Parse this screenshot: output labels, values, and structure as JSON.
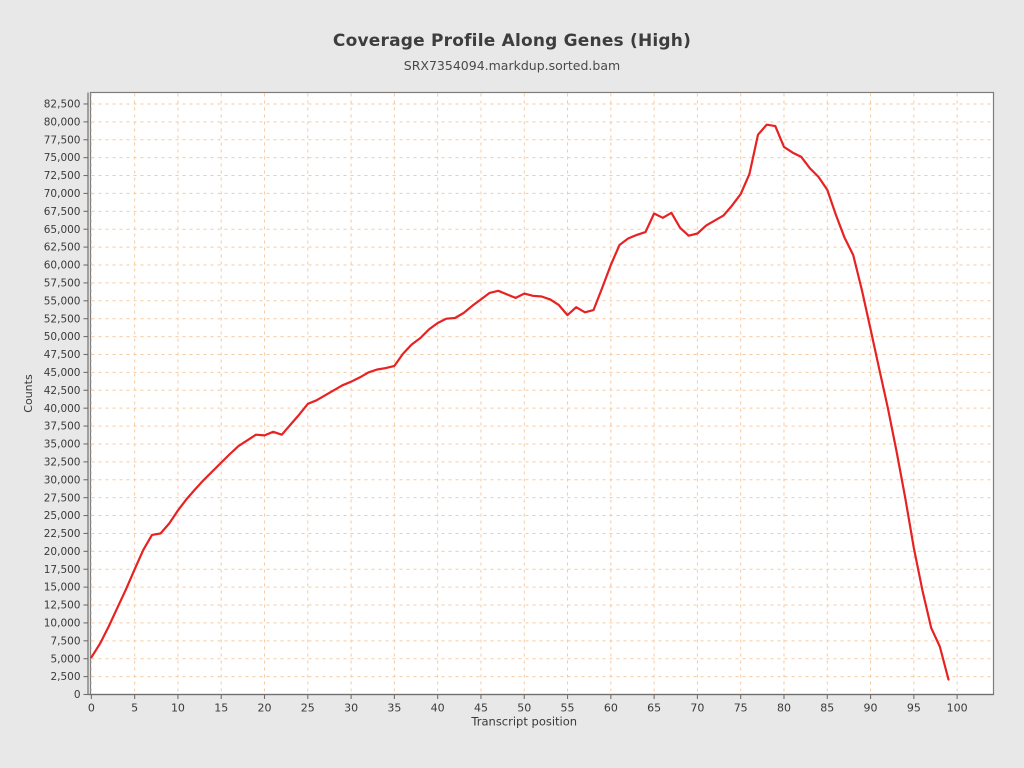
{
  "header": {
    "title": "Coverage Profile Along Genes (High)",
    "subtitle": "SRX7354094.markdup.sorted.bam"
  },
  "chart_data": {
    "type": "line",
    "title": "Coverage Profile Along Genes (High)",
    "subtitle": "SRX7354094.markdup.sorted.bam",
    "xlabel": "Transcript position",
    "ylabel": "Counts",
    "xlim": [
      -0.1,
      104.2
    ],
    "ylim": [
      0,
      84100
    ],
    "x_ticks": [
      0,
      5,
      10,
      15,
      20,
      25,
      30,
      35,
      40,
      45,
      50,
      55,
      60,
      65,
      70,
      75,
      80,
      85,
      90,
      95,
      100
    ],
    "y_ticks": {
      "min": 0,
      "max": 82500,
      "step": 2500
    },
    "grid": "dashed",
    "legend_position": "none",
    "colors": {
      "line": "#e62222",
      "grid": "#f6c9a1",
      "panel": "#ffffff",
      "background": "#e8e8e8",
      "axis": "#707070",
      "tick_text": "#3a3a3a"
    },
    "series": [
      {
        "name": "SRX7354094.markdup.sorted.bam",
        "x_start": 0,
        "x_step": 1,
        "values": [
          5200,
          7100,
          9500,
          12100,
          14700,
          17500,
          20200,
          22300,
          22500,
          23900,
          25700,
          27300,
          28700,
          30000,
          31200,
          32400,
          33600,
          34700,
          35500,
          36300,
          36200,
          36700,
          36300,
          37700,
          39100,
          40600,
          41100,
          41800,
          42500,
          43200,
          43700,
          44300,
          45000,
          45400,
          45600,
          45900,
          47600,
          48900,
          49800,
          51000,
          51900,
          52500,
          52600,
          53300,
          54300,
          55200,
          56100,
          56400,
          55900,
          55400,
          56000,
          55700,
          55600,
          55200,
          54400,
          53000,
          54100,
          53400,
          53700,
          56800,
          60000,
          62800,
          63700,
          64200,
          64600,
          67200,
          66600,
          67300,
          65200,
          64100,
          64400,
          65500,
          66200,
          66900,
          68300,
          69900,
          72700,
          78200,
          79600,
          79400,
          76500,
          75700,
          75100,
          73500,
          72300,
          70500,
          67000,
          63800,
          61400,
          56500,
          51000,
          45500,
          40000,
          34000,
          27500,
          20500,
          14500,
          9300,
          6700,
          2100
        ]
      }
    ]
  }
}
